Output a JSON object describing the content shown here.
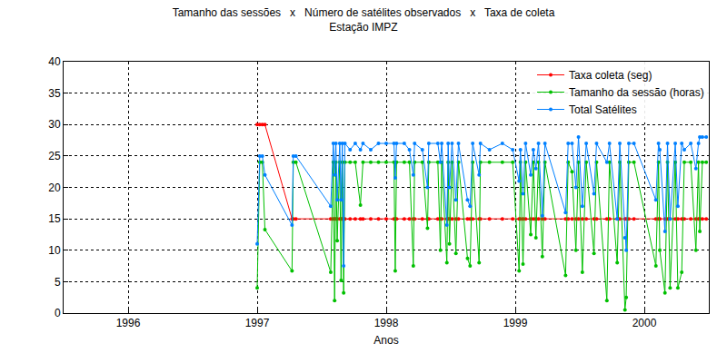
{
  "chart_data": {
    "type": "line",
    "title": "Tamanho das sessões   x   Número de satélites observados   x   Taxa de coleta",
    "subtitle": "Estação IMPZ",
    "x_label": "Anos",
    "x": [
      1997.0,
      1997.02,
      1997.04,
      1997.06,
      1997.27,
      1997.28,
      1997.3,
      1997.57,
      1997.59,
      1997.6,
      1997.61,
      1997.62,
      1997.64,
      1997.65,
      1997.66,
      1997.67,
      1997.68,
      1997.72,
      1997.76,
      1997.8,
      1997.82,
      1997.88,
      1997.94,
      1998.0,
      1998.06,
      1998.07,
      1998.08,
      1998.14,
      1998.18,
      1998.21,
      1998.22,
      1998.28,
      1998.32,
      1998.33,
      1998.4,
      1998.42,
      1998.43,
      1998.47,
      1998.48,
      1998.49,
      1998.51,
      1998.54,
      1998.56,
      1998.63,
      1998.65,
      1998.67,
      1998.72,
      1998.73,
      1998.8,
      1998.9,
      1998.98,
      1999.03,
      1999.04,
      1999.06,
      1999.08,
      1999.12,
      1999.14,
      1999.16,
      1999.18,
      1999.21,
      1999.23,
      1999.39,
      1999.41,
      1999.44,
      1999.47,
      1999.49,
      1999.52,
      1999.55,
      1999.61,
      1999.63,
      1999.71,
      1999.73,
      1999.79,
      1999.81,
      1999.85,
      1999.86,
      1999.88,
      1999.92,
      2000.09,
      2000.11,
      2000.12,
      2000.16,
      2000.18,
      2000.2,
      2000.24,
      2000.26,
      2000.29,
      2000.31,
      2000.36,
      2000.4,
      2000.42,
      2000.43,
      2000.45,
      2000.48
    ],
    "series": [
      {
        "name": "Taxa coleta (seg)",
        "color": "#ff0000",
        "values": [
          30,
          30,
          30,
          30,
          15,
          15,
          15,
          15,
          15,
          15,
          15,
          15,
          15,
          15,
          15,
          15,
          15,
          15,
          15,
          15,
          15,
          15,
          15,
          15,
          15,
          15,
          15,
          15,
          15,
          15,
          15,
          15,
          15,
          15,
          15,
          15,
          15,
          15,
          15,
          15,
          15,
          15,
          15,
          15,
          15,
          15,
          15,
          15,
          15,
          15,
          15,
          15,
          15,
          15,
          15,
          15,
          15,
          15,
          15,
          15,
          15,
          15,
          15,
          15,
          15,
          15,
          15,
          15,
          15,
          15,
          15,
          15,
          15,
          15,
          15,
          15,
          15,
          15,
          15,
          15,
          15,
          15,
          15,
          15,
          15,
          15,
          15,
          15,
          15,
          15,
          15,
          15,
          15,
          15
        ]
      },
      {
        "name": "Tamanho da sessão (horas)",
        "color": "#00c000",
        "values": [
          4,
          24,
          24,
          13.3,
          6.7,
          24,
          24,
          6.5,
          24,
          2,
          24,
          11.5,
          24,
          5.2,
          24,
          3.2,
          24,
          24,
          24,
          17.2,
          24,
          24,
          24,
          24,
          24,
          6.7,
          24,
          24,
          24,
          7.5,
          24,
          24,
          13.5,
          24,
          24,
          10,
          24,
          8,
          24,
          11,
          24,
          9.5,
          24,
          8.7,
          7.5,
          24,
          8,
          24,
          24,
          24,
          24,
          6.7,
          24,
          7.8,
          24,
          12.5,
          24,
          12,
          24,
          9,
          24,
          6,
          24,
          22.5,
          10,
          24,
          6.5,
          24,
          9.5,
          24,
          2,
          24,
          8,
          24,
          0.5,
          2.5,
          24,
          24,
          7.5,
          24,
          10,
          3.2,
          24,
          4,
          24,
          4,
          6.5,
          24,
          24,
          10,
          24,
          13,
          24,
          24
        ]
      },
      {
        "name": "Total Satélites",
        "color": "#0080ff",
        "values": [
          11,
          25,
          25,
          22,
          14,
          25,
          25,
          17,
          27,
          22,
          27,
          18,
          27,
          18,
          27,
          7.5,
          27,
          26,
          27,
          26,
          27,
          26,
          27,
          27,
          27,
          21.5,
          27,
          27,
          26,
          22,
          27,
          26,
          20,
          27,
          27,
          24,
          27,
          14,
          27,
          20,
          27,
          18,
          27,
          18,
          17,
          27,
          22,
          27,
          26,
          27,
          26,
          21,
          26,
          19,
          27,
          22,
          26,
          23,
          27,
          15.5,
          27,
          16,
          27,
          27,
          20,
          28,
          17,
          27,
          19,
          27,
          24,
          27,
          15,
          27,
          12,
          10,
          27,
          27,
          18,
          27,
          26,
          13,
          27,
          15,
          27,
          17,
          27,
          26,
          27,
          23,
          27,
          28,
          28,
          28
        ]
      }
    ],
    "xlim": [
      1995.5,
      2000.5
    ],
    "xticks": [
      1996,
      1997,
      1998,
      1999,
      2000
    ],
    "ylim": [
      0,
      40
    ],
    "yticks": [
      0,
      5,
      10,
      15,
      20,
      25,
      30,
      35,
      40
    ],
    "grid": true,
    "legend": "top-right",
    "marker": "circle",
    "line_style": "solid"
  }
}
